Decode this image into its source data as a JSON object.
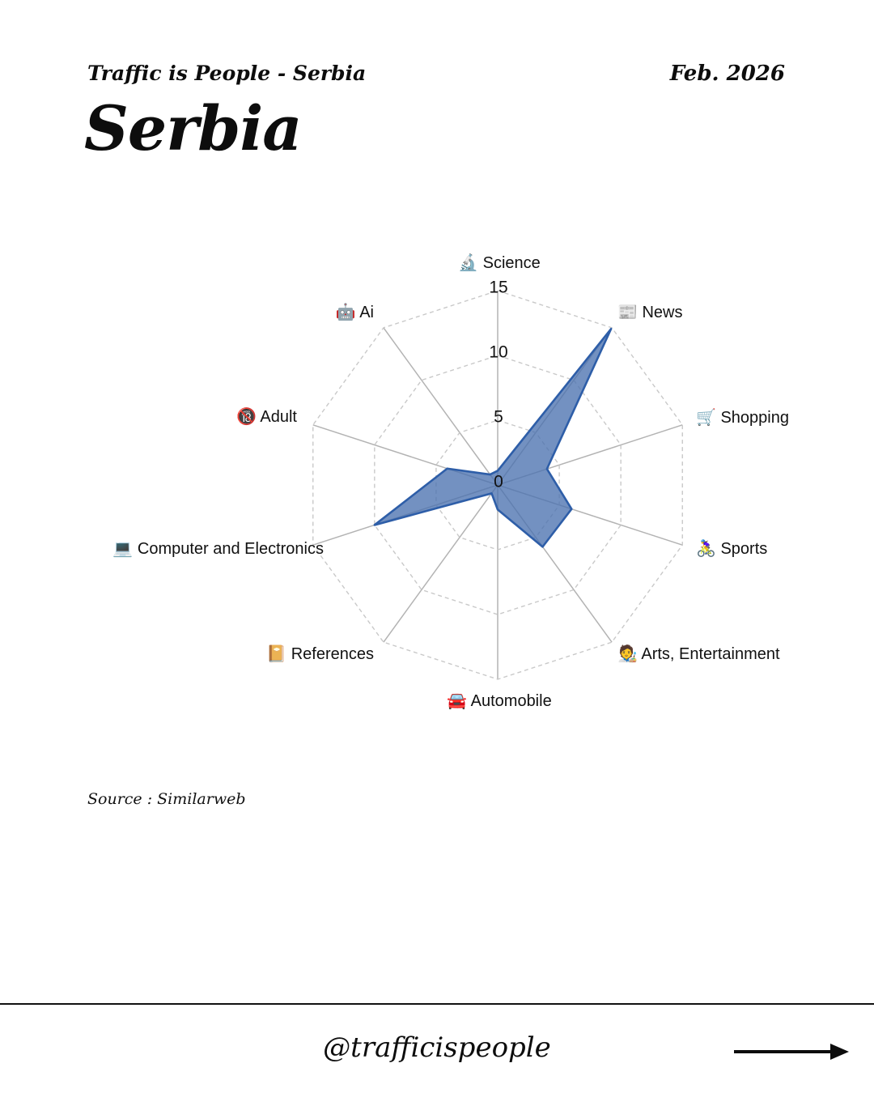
{
  "header": {
    "small_title": "Traffic is People - Serbia",
    "date": "Feb. 2026",
    "title": "Serbia"
  },
  "source": "Source : Similarweb",
  "footer": {
    "handle": "@trafficispeople",
    "arrow_icon": "right-arrow"
  },
  "chart_data": {
    "type": "radar",
    "title": "",
    "categories": [
      "Science",
      "News",
      "Shopping",
      "Sports",
      "Arts, Entertainment",
      "Automobile",
      "References",
      "Computer and Electronics",
      "Adult",
      "Ai"
    ],
    "icons": [
      "🔬",
      "📰",
      "🛒",
      "🚴‍♀️",
      "🧑‍🎨",
      "🚘",
      "📔",
      "💻",
      "🔞",
      "🤖"
    ],
    "series": [
      {
        "name": "Serbia",
        "values": [
          1.1,
          14.9,
          4.0,
          6.0,
          5.9,
          1.9,
          0.8,
          10.0,
          4.1,
          1.0
        ]
      }
    ],
    "radial_ticks": [
      0,
      5,
      10,
      15
    ],
    "r_range": [
      0,
      15
    ],
    "start_axis": "top",
    "direction": "clockwise",
    "grid": true,
    "grid_shape": "polygon",
    "grid_ring_values": [
      5,
      10,
      15
    ],
    "grid_ring_style": "dashed",
    "grid_ring_color": "#c9c9c9",
    "spoke_color": "#b3b3b3",
    "fill_color": "#4c72b0",
    "fill_opacity": 0.78,
    "stroke_color": "#2e5ea8",
    "label_color": "#111111"
  }
}
